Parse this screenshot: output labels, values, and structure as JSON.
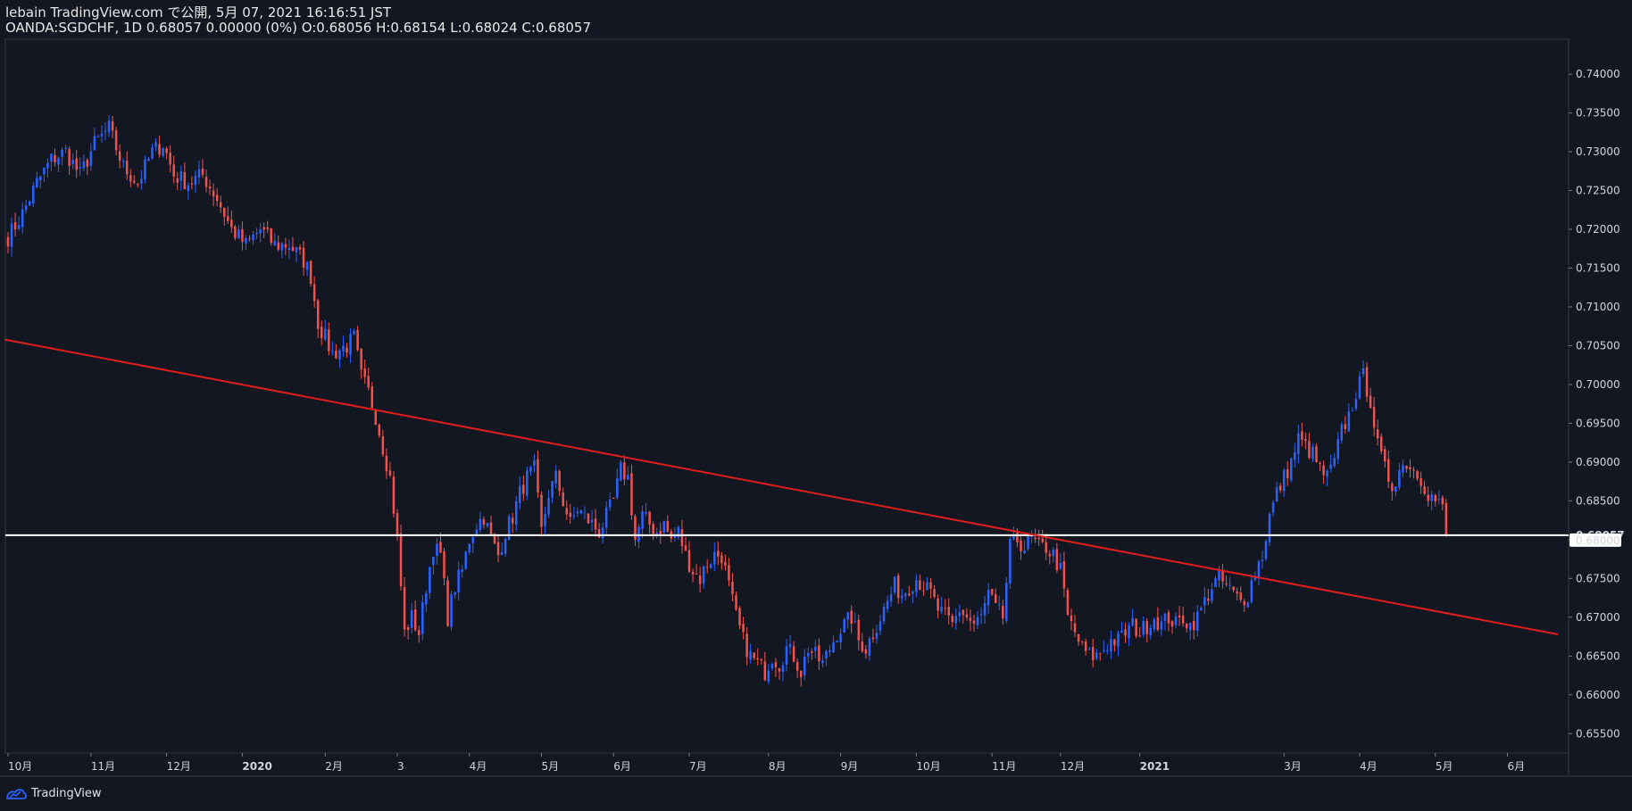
{
  "header": {
    "line1": "lebain TradingView.com で公開, 5月 07, 2021 16:16:51 JST",
    "line2": "OANDA:SGDCHF, 1D 0.68057 0.00000 (0%) O:0.68056 H:0.68154 L:0.68024 C:0.68057"
  },
  "footer": {
    "brand": "TradingView",
    "logo_icon": "tradingview-logo-icon"
  },
  "colors": {
    "background": "#131722",
    "up": "#2962ff",
    "down": "#ef5350",
    "trendline": "#e01e1e",
    "hline": "#ffffff",
    "grid_border": "#363a45"
  },
  "chart_data": {
    "type": "candlestick",
    "symbol": "OANDA:SGDCHF",
    "interval": "1D",
    "ylim": [
      0.6525,
      0.7445
    ],
    "y_ticks": [
      "0.74000",
      "0.73500",
      "0.73000",
      "0.72500",
      "0.72000",
      "0.71500",
      "0.71000",
      "0.70500",
      "0.70000",
      "0.69500",
      "0.69000",
      "0.68500",
      "0.68000",
      "0.67500",
      "0.67000",
      "0.66500",
      "0.66000",
      "0.65500"
    ],
    "x_ticks": [
      {
        "label": "10月",
        "i": 0,
        "bold": false
      },
      {
        "label": "11月",
        "i": 23,
        "bold": false
      },
      {
        "label": "12月",
        "i": 44,
        "bold": false
      },
      {
        "label": "2020",
        "i": 65,
        "bold": true
      },
      {
        "label": "2月",
        "i": 88,
        "bold": false
      },
      {
        "label": "3",
        "i": 108,
        "bold": false
      },
      {
        "label": "4月",
        "i": 128,
        "bold": false
      },
      {
        "label": "5月",
        "i": 148,
        "bold": false
      },
      {
        "label": "6月",
        "i": 168,
        "bold": false
      },
      {
        "label": "7月",
        "i": 189,
        "bold": false
      },
      {
        "label": "8月",
        "i": 211,
        "bold": false
      },
      {
        "label": "9月",
        "i": 231,
        "bold": false
      },
      {
        "label": "10月",
        "i": 252,
        "bold": false
      },
      {
        "label": "11月",
        "i": 273,
        "bold": false
      },
      {
        "label": "12月",
        "i": 292,
        "bold": false
      },
      {
        "label": "2021",
        "i": 314,
        "bold": true
      },
      {
        "label": "3月",
        "i": 354,
        "bold": false
      },
      {
        "label": "4月",
        "i": 375,
        "bold": false
      },
      {
        "label": "5月",
        "i": 396,
        "bold": false
      },
      {
        "label": "6月",
        "i": 416,
        "bold": false
      }
    ],
    "x_slots": 430,
    "price_waypoints": [
      [
        0,
        0.719
      ],
      [
        4,
        0.722
      ],
      [
        8,
        0.726
      ],
      [
        12,
        0.729
      ],
      [
        16,
        0.73
      ],
      [
        20,
        0.727
      ],
      [
        24,
        0.731
      ],
      [
        28,
        0.733
      ],
      [
        32,
        0.728
      ],
      [
        36,
        0.726
      ],
      [
        40,
        0.73
      ],
      [
        43,
        0.731
      ],
      [
        46,
        0.727
      ],
      [
        50,
        0.726
      ],
      [
        54,
        0.727
      ],
      [
        58,
        0.724
      ],
      [
        62,
        0.72
      ],
      [
        66,
        0.718
      ],
      [
        70,
        0.72
      ],
      [
        74,
        0.718
      ],
      [
        78,
        0.718
      ],
      [
        82,
        0.716
      ],
      [
        84,
        0.714
      ],
      [
        86,
        0.708
      ],
      [
        88,
        0.706
      ],
      [
        90,
        0.704
      ],
      [
        94,
        0.705
      ],
      [
        96,
        0.706
      ],
      [
        98,
        0.701
      ],
      [
        100,
        0.699
      ],
      [
        102,
        0.696
      ],
      [
        104,
        0.692
      ],
      [
        106,
        0.688
      ],
      [
        108,
        0.68
      ],
      [
        110,
        0.668
      ],
      [
        112,
        0.67
      ],
      [
        114,
        0.668
      ],
      [
        116,
        0.674
      ],
      [
        118,
        0.679
      ],
      [
        120,
        0.678
      ],
      [
        122,
        0.67
      ],
      [
        124,
        0.674
      ],
      [
        126,
        0.676
      ],
      [
        128,
        0.68
      ],
      [
        130,
        0.682
      ],
      [
        132,
        0.683
      ],
      [
        134,
        0.68
      ],
      [
        136,
        0.678
      ],
      [
        138,
        0.681
      ],
      [
        140,
        0.683
      ],
      [
        142,
        0.686
      ],
      [
        144,
        0.688
      ],
      [
        146,
        0.689
      ],
      [
        148,
        0.681
      ],
      [
        150,
        0.686
      ],
      [
        152,
        0.688
      ],
      [
        154,
        0.685
      ],
      [
        156,
        0.682
      ],
      [
        158,
        0.684
      ],
      [
        160,
        0.683
      ],
      [
        162,
        0.682
      ],
      [
        164,
        0.681
      ],
      [
        166,
        0.683
      ],
      [
        168,
        0.685
      ],
      [
        170,
        0.689
      ],
      [
        172,
        0.688
      ],
      [
        174,
        0.68
      ],
      [
        176,
        0.683
      ],
      [
        178,
        0.682
      ],
      [
        180,
        0.681
      ],
      [
        182,
        0.682
      ],
      [
        184,
        0.68
      ],
      [
        186,
        0.681
      ],
      [
        188,
        0.678
      ],
      [
        190,
        0.676
      ],
      [
        192,
        0.675
      ],
      [
        194,
        0.677
      ],
      [
        196,
        0.678
      ],
      [
        198,
        0.678
      ],
      [
        200,
        0.674
      ],
      [
        202,
        0.67
      ],
      [
        204,
        0.667
      ],
      [
        206,
        0.665
      ],
      [
        208,
        0.664
      ],
      [
        210,
        0.663
      ],
      [
        212,
        0.665
      ],
      [
        214,
        0.664
      ],
      [
        216,
        0.666
      ],
      [
        218,
        0.665
      ],
      [
        220,
        0.663
      ],
      [
        222,
        0.666
      ],
      [
        224,
        0.665
      ],
      [
        226,
        0.664
      ],
      [
        228,
        0.666
      ],
      [
        230,
        0.668
      ],
      [
        232,
        0.669
      ],
      [
        234,
        0.67
      ],
      [
        236,
        0.667
      ],
      [
        238,
        0.666
      ],
      [
        240,
        0.668
      ],
      [
        242,
        0.67
      ],
      [
        244,
        0.672
      ],
      [
        246,
        0.674
      ],
      [
        248,
        0.673
      ],
      [
        250,
        0.674
      ],
      [
        252,
        0.675
      ],
      [
        254,
        0.674
      ],
      [
        256,
        0.673
      ],
      [
        258,
        0.671
      ],
      [
        260,
        0.67
      ],
      [
        262,
        0.669
      ],
      [
        264,
        0.671
      ],
      [
        266,
        0.67
      ],
      [
        268,
        0.669
      ],
      [
        270,
        0.67
      ],
      [
        272,
        0.673
      ],
      [
        274,
        0.671
      ],
      [
        276,
        0.67
      ],
      [
        278,
        0.679
      ],
      [
        280,
        0.68
      ],
      [
        282,
        0.679
      ],
      [
        284,
        0.68
      ],
      [
        286,
        0.679
      ],
      [
        288,
        0.679
      ],
      [
        290,
        0.678
      ],
      [
        292,
        0.676
      ],
      [
        294,
        0.67
      ],
      [
        296,
        0.668
      ],
      [
        298,
        0.666
      ],
      [
        300,
        0.665
      ],
      [
        302,
        0.665
      ],
      [
        304,
        0.666
      ],
      [
        306,
        0.667
      ],
      [
        308,
        0.667
      ],
      [
        310,
        0.668
      ],
      [
        312,
        0.669
      ],
      [
        314,
        0.668
      ],
      [
        316,
        0.669
      ],
      [
        318,
        0.67
      ],
      [
        320,
        0.669
      ],
      [
        322,
        0.67
      ],
      [
        324,
        0.669
      ],
      [
        326,
        0.67
      ],
      [
        328,
        0.669
      ],
      [
        330,
        0.67
      ],
      [
        332,
        0.672
      ],
      [
        334,
        0.674
      ],
      [
        336,
        0.675
      ],
      [
        338,
        0.674
      ],
      [
        340,
        0.673
      ],
      [
        342,
        0.672
      ],
      [
        344,
        0.673
      ],
      [
        346,
        0.676
      ],
      [
        348,
        0.678
      ],
      [
        350,
        0.683
      ],
      [
        352,
        0.686
      ],
      [
        354,
        0.688
      ],
      [
        356,
        0.69
      ],
      [
        358,
        0.693
      ],
      [
        360,
        0.692
      ],
      [
        362,
        0.691
      ],
      [
        364,
        0.689
      ],
      [
        366,
        0.688
      ],
      [
        368,
        0.69
      ],
      [
        370,
        0.694
      ],
      [
        372,
        0.696
      ],
      [
        374,
        0.699
      ],
      [
        376,
        0.701
      ],
      [
        378,
        0.698
      ],
      [
        380,
        0.692
      ],
      [
        382,
        0.689
      ],
      [
        384,
        0.687
      ],
      [
        386,
        0.689
      ],
      [
        388,
        0.69
      ],
      [
        390,
        0.689
      ],
      [
        392,
        0.688
      ],
      [
        394,
        0.686
      ],
      [
        396,
        0.685
      ],
      [
        398,
        0.684
      ],
      [
        399,
        0.6806
      ]
    ],
    "trendline": {
      "start": {
        "i": -1,
        "price": 0.7058
      },
      "end": {
        "i": 430,
        "price": 0.6678
      }
    },
    "horizontal_line": {
      "price": 0.68057,
      "label": "0.68057"
    },
    "current_price_label": "0.68057",
    "crosshair_price_label": "0.68000",
    "crosshair_price": 0.68
  }
}
